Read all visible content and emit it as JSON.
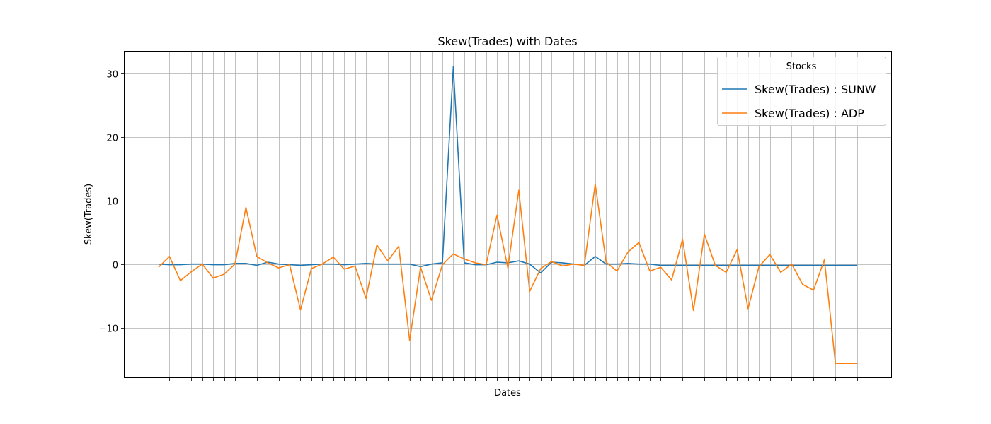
{
  "chart_data": {
    "type": "line",
    "title": "Skew(Trades) with Dates",
    "xlabel": "Dates",
    "ylabel": "Skew(Trades)",
    "ylim": [
      -17.8,
      33.5
    ],
    "yticks": [
      -10,
      0,
      10,
      20,
      30
    ],
    "ytick_labels": [
      "−10",
      "0",
      "10",
      "20",
      "30"
    ],
    "x_tick_count": 65,
    "x_tick_labels_shown": false,
    "grid": true,
    "legend": {
      "title": "Stocks",
      "placement": "top-right"
    },
    "series": [
      {
        "name": "Skew(Trades) : SUNW",
        "color": "#1f77b4",
        "values": [
          0.0,
          -0.1,
          -0.1,
          0.0,
          0.0,
          -0.1,
          -0.1,
          0.1,
          0.1,
          -0.2,
          0.3,
          0.0,
          -0.1,
          -0.2,
          -0.1,
          0.0,
          0.0,
          -0.1,
          0.0,
          0.1,
          0.0,
          0.0,
          0.0,
          0.0,
          -0.4,
          0.0,
          0.2,
          31.0,
          0.2,
          -0.1,
          -0.1,
          0.3,
          0.2,
          0.5,
          0.0,
          -1.4,
          0.3,
          0.2,
          0.0,
          -0.2,
          1.2,
          0.0,
          0.0,
          0.1,
          0.0,
          0.0,
          -0.2,
          -0.2,
          -0.2,
          -0.2,
          -0.2,
          -0.2,
          -0.2,
          -0.2,
          -0.2,
          -0.2,
          -0.2,
          -0.2,
          -0.2,
          -0.2,
          -0.2,
          -0.2,
          -0.2,
          -0.2,
          -0.2
        ]
      },
      {
        "name": "Skew(Trades) : ADP",
        "color": "#ff7f0e",
        "values": [
          -0.5,
          1.2,
          -2.6,
          -1.2,
          0.0,
          -2.2,
          -1.6,
          0.0,
          8.9,
          1.2,
          0.2,
          -0.6,
          -0.1,
          -7.2,
          -0.7,
          0.0,
          1.1,
          -0.8,
          -0.3,
          -5.4,
          3.0,
          0.5,
          2.8,
          -12.0,
          -0.5,
          -5.7,
          -0.1,
          1.6,
          0.8,
          0.2,
          -0.1,
          7.7,
          -0.6,
          11.6,
          -4.3,
          -0.7,
          0.4,
          -0.3,
          0.0,
          -0.2,
          12.6,
          0.3,
          -1.1,
          1.9,
          3.4,
          -1.1,
          -0.5,
          -2.5,
          3.9,
          -7.3,
          4.7,
          -0.2,
          -1.3,
          2.3,
          -7.0,
          -0.4,
          1.5,
          -1.3,
          0.0,
          -3.2,
          -4.1,
          0.7,
          -15.6,
          -15.6,
          -15.6
        ]
      }
    ]
  }
}
